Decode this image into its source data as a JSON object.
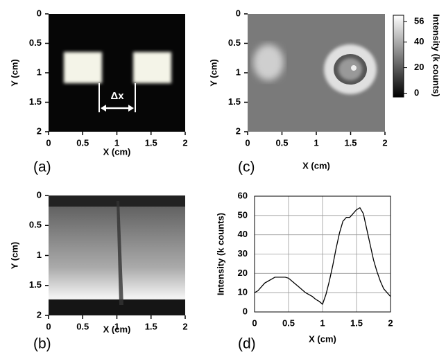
{
  "chart_data": [
    {
      "type": "image",
      "panel_label": "(a)",
      "xlabel": "X (cm)",
      "ylabel": "Y (cm)",
      "annotation": "Δx",
      "xlim": [
        0,
        2
      ],
      "ylim": [
        2,
        0
      ],
      "xticks": [
        0,
        0.5,
        1,
        1.5,
        2
      ],
      "yticks": [
        0,
        0.5,
        1,
        1.5,
        2
      ]
    },
    {
      "type": "image",
      "panel_label": "(c)",
      "xlabel": "X (cm)",
      "ylabel": "Y (cm)",
      "xlim": [
        0,
        2
      ],
      "ylim": [
        2,
        0
      ],
      "xticks": [
        0,
        0.5,
        1,
        1.5,
        2
      ],
      "yticks": [
        0,
        0.5,
        1,
        1.5,
        2
      ],
      "colorbar": {
        "label": "Intensity (k counts)",
        "lim": [
          -3,
          61
        ],
        "ticks": [
          0,
          20,
          40,
          56
        ]
      }
    },
    {
      "type": "image",
      "panel_label": "(b)",
      "xlabel": "X (cm)",
      "ylabel": "Y (cm)",
      "xlim": [
        0,
        2
      ],
      "ylim": [
        2,
        0
      ],
      "xticks": [
        0,
        0.5,
        1,
        1.5,
        2
      ],
      "yticks": [
        0,
        0.5,
        1,
        1.5,
        2
      ]
    },
    {
      "type": "line",
      "panel_label": "(d)",
      "xlabel": "X (cm)",
      "ylabel": "Intensity (k counts)",
      "color": "#000000",
      "grid": true,
      "xlim": [
        0,
        2
      ],
      "ylim": [
        0,
        60
      ],
      "xticks": [
        0,
        0.5,
        1,
        1.5,
        2
      ],
      "yticks": [
        0,
        10,
        20,
        30,
        40,
        50,
        60
      ],
      "x": [
        0,
        0.05,
        0.1,
        0.15,
        0.2,
        0.25,
        0.3,
        0.35,
        0.4,
        0.45,
        0.5,
        0.55,
        0.6,
        0.65,
        0.7,
        0.75,
        0.8,
        0.85,
        0.9,
        0.95,
        1,
        1.05,
        1.1,
        1.15,
        1.2,
        1.25,
        1.3,
        1.35,
        1.4,
        1.45,
        1.5,
        1.55,
        1.6,
        1.65,
        1.7,
        1.75,
        1.8,
        1.85,
        1.9,
        1.95,
        2
      ],
      "values": [
        10,
        11,
        13,
        15,
        16,
        17,
        18,
        18,
        18,
        18,
        17.5,
        16,
        14.5,
        13,
        11.5,
        10,
        9,
        8,
        6.5,
        5.5,
        4,
        9,
        16,
        24,
        33,
        41,
        47,
        49,
        49,
        51,
        53,
        54,
        51,
        43,
        35,
        27,
        21,
        16,
        12,
        10,
        8
      ]
    }
  ]
}
